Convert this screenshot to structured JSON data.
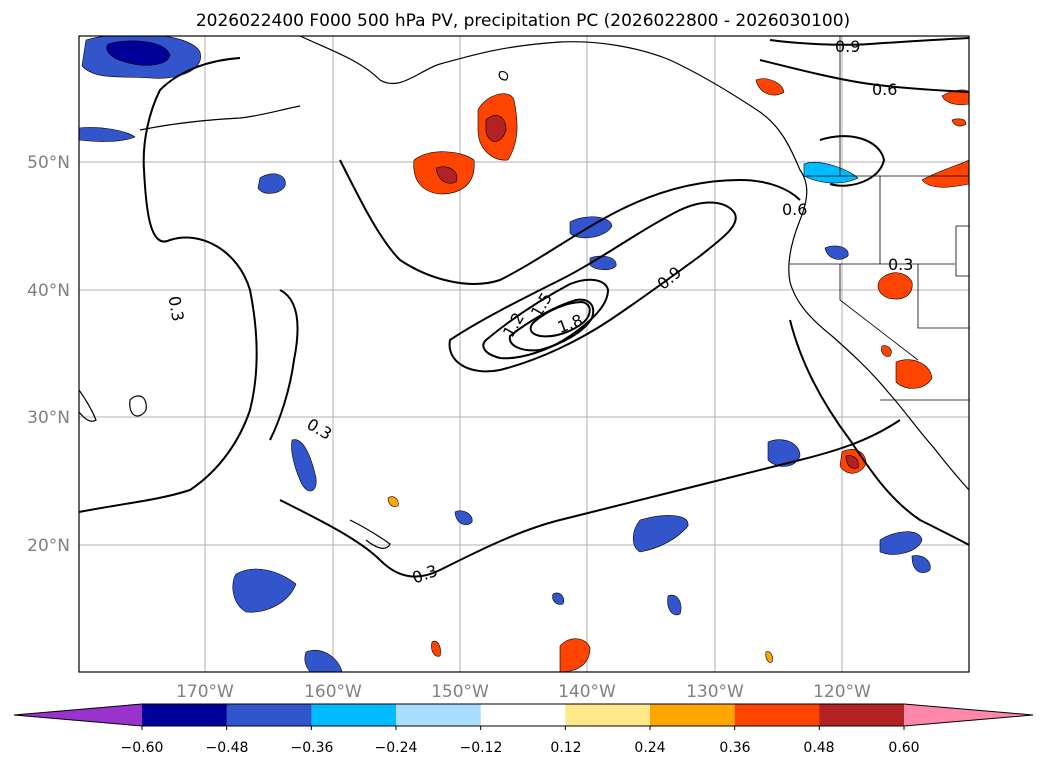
{
  "title": "2026022400 F000 500 hPa PV, precipitation PC (2026022800 - 2026030100)",
  "axes": {
    "lat_labels": [
      "50°N",
      "40°N",
      "30°N",
      "20°N"
    ],
    "lon_labels": [
      "170°W",
      "160°W",
      "150°W",
      "140°W",
      "130°W",
      "120°W"
    ]
  },
  "contour_labels": {
    "c09_top": "0.9",
    "c06_top": "0.6",
    "c06_coast": "0.6",
    "c03_west": "0.3",
    "c03_mid": "0.3",
    "c03_south": "0.3",
    "c03_east": "0.3",
    "c09_mid": "0.9",
    "c12": "1.2",
    "c15": "1.5",
    "c18": "1.8"
  },
  "colorbar": {
    "ticks": [
      "−0.60",
      "−0.48",
      "−0.36",
      "−0.24",
      "−0.12",
      "0.12",
      "0.24",
      "0.36",
      "0.48",
      "0.60"
    ],
    "colors": [
      "#9933cc",
      "#000099",
      "#3355cc",
      "#00bbff",
      "#aaddff",
      "#ffffff",
      "#ffe88a",
      "#ffa500",
      "#ff4400",
      "#b22222",
      "#ff88aa"
    ]
  },
  "colors": {
    "neg_strong": "#000099",
    "neg_mid": "#3355cc",
    "neg_light": "#00bbff",
    "pos_light": "#ffe88a",
    "pos_mid": "#ffa500",
    "pos_strong": "#ff4400",
    "pos_dark": "#b22222"
  }
}
